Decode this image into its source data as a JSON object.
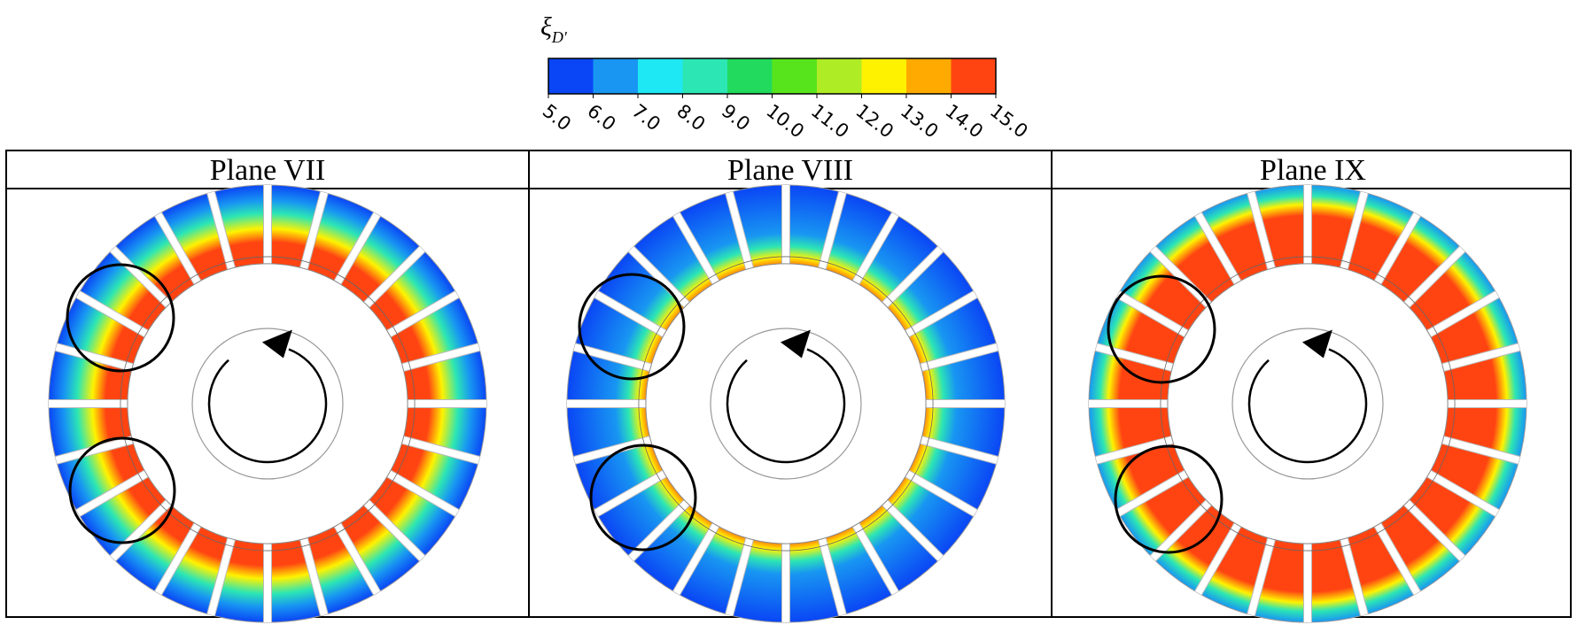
{
  "colorbar": {
    "title": "ξ",
    "title_subscript": "D'",
    "ticks": [
      "5.0",
      "6.0",
      "7.0",
      "8.0",
      "9.0",
      "10.0",
      "11.0",
      "12.0",
      "13.0",
      "14.0",
      "15.0"
    ],
    "colors": [
      "#0a46f5",
      "#1896f2",
      "#1ee8f4",
      "#2ce6b4",
      "#22da5e",
      "#58e41c",
      "#aeec26",
      "#fff200",
      "#ffaa00",
      "#ff4412"
    ]
  },
  "panels": [
    {
      "title": "Plane VII"
    },
    {
      "title": "Plane VIII"
    },
    {
      "title": "Plane IX"
    }
  ]
}
